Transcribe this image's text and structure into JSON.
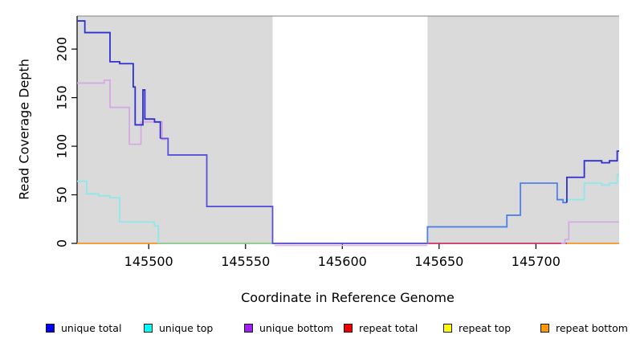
{
  "chart_data": {
    "type": "line",
    "subtype": "step-coverage",
    "title": "",
    "xlabel": "Coordinate in Reference Genome",
    "ylabel": "Read Coverage Depth",
    "xlim": [
      145463,
      145743
    ],
    "ylim": [
      0,
      234
    ],
    "x_ticks": [
      145500,
      145550,
      145600,
      145650,
      145700
    ],
    "y_ticks": [
      0,
      50,
      100,
      150,
      200
    ],
    "grid": false,
    "legend_position": "bottom",
    "plot_bg": "#ffffff",
    "top_border_color": "#999999",
    "shaded_regions": [
      {
        "from": 145463,
        "to": 145564,
        "color": "#dadada"
      },
      {
        "from": 145644,
        "to": 145743,
        "color": "#dadada"
      }
    ],
    "series": [
      {
        "name": "unique total",
        "legend_color": "#0000ee",
        "steps": [
          [
            145463,
            229
          ],
          [
            145467,
            217
          ],
          [
            145480,
            187
          ],
          [
            145485,
            185
          ],
          [
            145492,
            161
          ],
          [
            145493,
            122
          ],
          [
            145497,
            158
          ],
          [
            145498,
            128
          ],
          [
            145503,
            125
          ],
          [
            145506,
            108
          ],
          [
            145510,
            91
          ],
          [
            145530,
            38
          ],
          [
            145564,
            0
          ],
          [
            145644,
            17
          ],
          [
            145685,
            29
          ],
          [
            145692,
            62
          ],
          [
            145711,
            45
          ],
          [
            145714,
            42
          ],
          [
            145716,
            68
          ],
          [
            145725,
            85
          ],
          [
            145734,
            83
          ],
          [
            145738,
            85
          ],
          [
            145742,
            95
          ]
        ],
        "end": 145743
      },
      {
        "name": "unique top",
        "legend_color": "#00ffff",
        "steps": [
          [
            145463,
            64
          ],
          [
            145468,
            51
          ],
          [
            145474,
            49
          ],
          [
            145480,
            47
          ],
          [
            145485,
            22
          ],
          [
            145503,
            18
          ],
          [
            145505,
            0
          ],
          [
            145644,
            17
          ],
          [
            145685,
            29
          ],
          [
            145692,
            62
          ],
          [
            145711,
            45
          ],
          [
            145725,
            62
          ],
          [
            145734,
            60
          ],
          [
            145738,
            62
          ],
          [
            145742,
            71
          ]
        ],
        "end": 145743
      },
      {
        "name": "unique bottom",
        "legend_color": "#a020f0",
        "steps": [
          [
            145463,
            165
          ],
          [
            145477,
            168
          ],
          [
            145480,
            140
          ],
          [
            145490,
            102
          ],
          [
            145496,
            125
          ],
          [
            145507,
            107
          ],
          [
            145510,
            91
          ],
          [
            145530,
            38
          ],
          [
            145564,
            0
          ],
          [
            145715,
            4
          ],
          [
            145717,
            22
          ]
        ],
        "end": 145743
      },
      {
        "name": "repeat total",
        "legend_color": "#ee0000",
        "steps": [
          [
            145463,
            0
          ]
        ],
        "end": 145743
      },
      {
        "name": "repeat top",
        "legend_color": "#ffff00",
        "steps": [
          [
            145463,
            0
          ]
        ],
        "end": 145743
      },
      {
        "name": "repeat bottom",
        "legend_color": "#ff9900",
        "steps": [
          [
            145463,
            0
          ]
        ],
        "end": 145743
      }
    ],
    "render_polylines": [
      {
        "name": "repeat-bottom-zero-left",
        "color": "#ff9c2a",
        "pts": [
          [
            145463,
            0
          ]
        ],
        "end": 145505
      },
      {
        "name": "repeat-zero-green",
        "color": "#8fcf8f",
        "pts": [
          [
            145505,
            0
          ]
        ],
        "end": 145565
      },
      {
        "name": "repeat-zero-crimson",
        "color": "#d23a6b",
        "pts": [
          [
            145644,
            0
          ]
        ],
        "end": 145716
      },
      {
        "name": "repeat-bottom-zero-right",
        "color": "#ff9c2a",
        "pts": [
          [
            145716,
            0
          ]
        ],
        "end": 145743
      },
      {
        "name": "unique-bottom-zero",
        "color": "#dcb8ea",
        "dy": 2.5,
        "pts": [
          [
            145565,
            0
          ]
        ],
        "end": 145644
      },
      {
        "name": "unique-bottom-left",
        "color": "#d5a9e3",
        "pts": [
          [
            145463,
            165
          ],
          [
            145477,
            168
          ],
          [
            145480,
            140
          ],
          [
            145490,
            102
          ],
          [
            145496,
            125
          ],
          [
            145507,
            107
          ]
        ],
        "end": 145509
      },
      {
        "name": "unique-bottom-right",
        "color": "#d5a9e3",
        "pts": [
          [
            145713,
            0
          ],
          [
            145715,
            4
          ],
          [
            145717,
            22
          ]
        ],
        "end": 145743
      },
      {
        "name": "unique-top-left",
        "color": "#8fe7eb",
        "pts": [
          [
            145463,
            64
          ],
          [
            145468,
            51
          ],
          [
            145474,
            49
          ],
          [
            145480,
            47
          ],
          [
            145485,
            22
          ],
          [
            145503,
            18
          ],
          [
            145505,
            0
          ]
        ],
        "end": 145505
      },
      {
        "name": "unique-total-zero-mid",
        "color": "#5b4fd8",
        "pts": [
          [
            145506,
            108
          ],
          [
            145510,
            91
          ],
          [
            145530,
            38
          ],
          [
            145564,
            0
          ]
        ],
        "end": 145644
      },
      {
        "name": "unique-total-rise",
        "color": "#4f80e8",
        "pts": [
          [
            145644,
            0
          ],
          [
            145644,
            17
          ],
          [
            145685,
            29
          ],
          [
            145692,
            62
          ],
          [
            145711,
            45
          ],
          [
            145714,
            42
          ]
        ],
        "end": 145716
      },
      {
        "name": "unique-top-right",
        "color": "#8fe7eb",
        "pts": [
          [
            145715,
            45
          ],
          [
            145725,
            62
          ],
          [
            145734,
            60
          ],
          [
            145738,
            62
          ],
          [
            145742,
            71
          ]
        ],
        "end": 145743
      },
      {
        "name": "unique-total-left",
        "color": "#2f2fd3",
        "pts": [
          [
            145463,
            229
          ],
          [
            145467,
            217
          ],
          [
            145480,
            187
          ],
          [
            145485,
            185
          ],
          [
            145492,
            161
          ],
          [
            145493,
            122
          ],
          [
            145497,
            158
          ],
          [
            145498,
            128
          ],
          [
            145503,
            125
          ],
          [
            145506,
            108
          ]
        ],
        "end": 145506
      },
      {
        "name": "unique-total-right",
        "color": "#2f2fd3",
        "pts": [
          [
            145716,
            42
          ],
          [
            145716,
            68
          ],
          [
            145725,
            85
          ],
          [
            145734,
            83
          ],
          [
            145738,
            85
          ],
          [
            145742,
            95
          ]
        ],
        "end": 145743
      }
    ]
  }
}
